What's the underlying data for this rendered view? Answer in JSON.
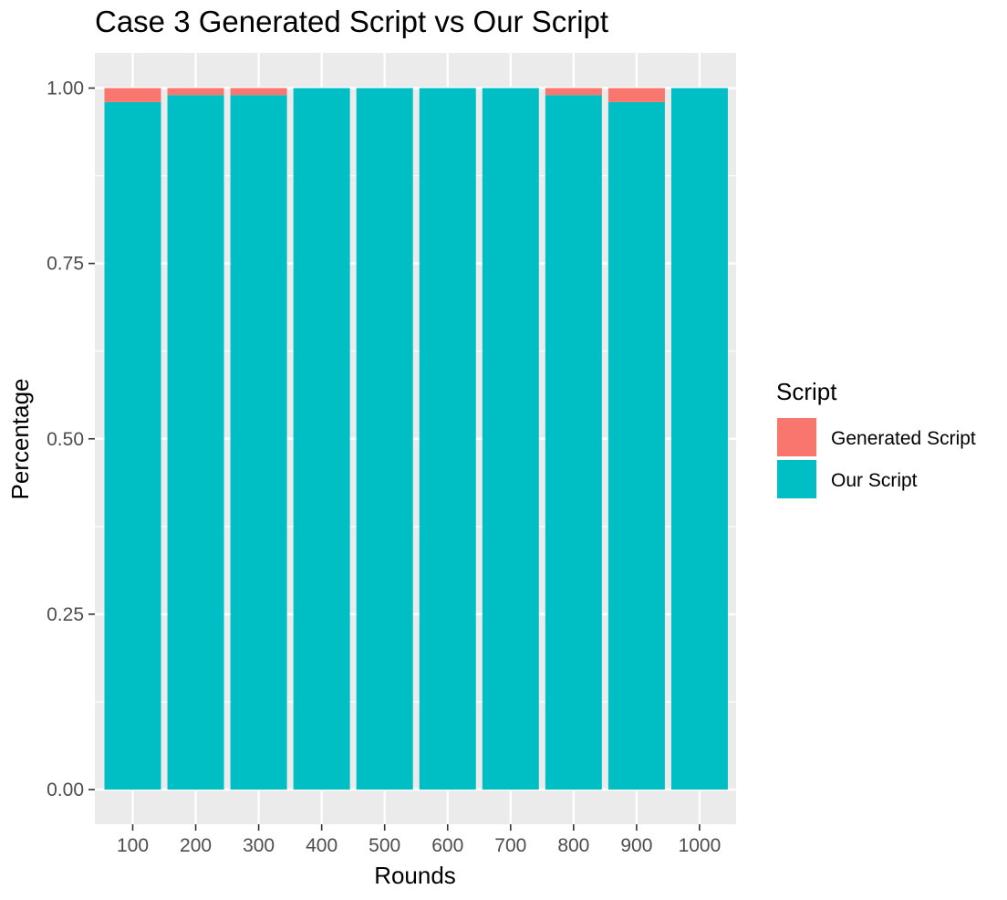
{
  "chart_data": {
    "type": "bar",
    "stacked": true,
    "title": "Case 3 Generated Script vs Our Script",
    "xlabel": "Rounds",
    "ylabel": "Percentage",
    "categories": [
      "100",
      "200",
      "300",
      "400",
      "500",
      "600",
      "700",
      "800",
      "900",
      "1000"
    ],
    "ylim": [
      0,
      1
    ],
    "yticks": [
      "0.00",
      "0.25",
      "0.50",
      "0.75",
      "1.00"
    ],
    "series": [
      {
        "name": "Generated Script",
        "color": "#F8766D",
        "values": [
          0.02,
          0.01,
          0.01,
          0.0,
          0.0,
          0.0,
          0.0,
          0.01,
          0.02,
          0.0
        ]
      },
      {
        "name": "Our Script",
        "color": "#00BFC4",
        "values": [
          0.98,
          0.99,
          0.99,
          1.0,
          1.0,
          1.0,
          1.0,
          0.99,
          0.98,
          1.0
        ]
      }
    ],
    "legend": {
      "title": "Script",
      "position": "right"
    },
    "grid": true,
    "panel_background": "#EBEBEB",
    "grid_color": "#FFFFFF"
  }
}
